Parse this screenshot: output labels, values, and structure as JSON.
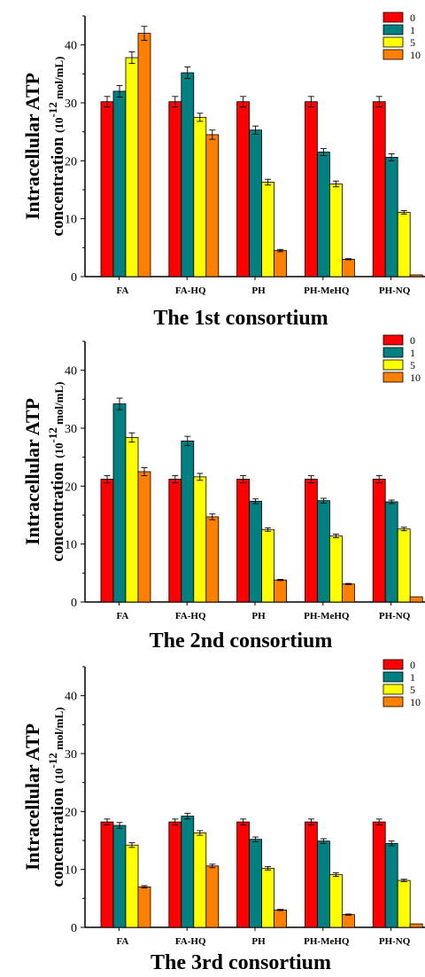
{
  "chart_data": [
    {
      "type": "bar",
      "title": "The 1st consortium",
      "ylabel_line1": "Intracellular ATP",
      "ylabel_line2_prefix": "concentration ",
      "ylabel_unit": "(10",
      "ylabel_exp": "-12",
      "ylabel_unit_rest": " mol/mL)",
      "xlabel": "",
      "ylim": [
        0,
        45
      ],
      "yticks": [
        "0",
        "10",
        "20",
        "30",
        "40"
      ],
      "categories": [
        "FA",
        "FA-HQ",
        "PH",
        "PH-MeHQ",
        "PH-NQ"
      ],
      "legend_position": "top-right",
      "series": [
        {
          "name": "0",
          "color": "#ff0000",
          "values": [
            30.2,
            30.2,
            30.2,
            30.2,
            30.2
          ],
          "errors": [
            0.9,
            0.9,
            0.9,
            0.9,
            0.9
          ]
        },
        {
          "name": "1",
          "color": "#008080",
          "values": [
            32.0,
            35.2,
            25.3,
            21.5,
            20.6
          ],
          "errors": [
            1.0,
            1.0,
            0.7,
            0.6,
            0.6
          ]
        },
        {
          "name": "5",
          "color": "#ffff00",
          "values": [
            37.8,
            27.5,
            16.3,
            16.0,
            11.1
          ],
          "errors": [
            1.0,
            0.7,
            0.5,
            0.5,
            0.3
          ]
        },
        {
          "name": "10",
          "color": "#ff8000",
          "values": [
            42.0,
            24.5,
            4.5,
            3.0,
            0.3
          ],
          "errors": [
            1.2,
            0.8,
            0.2,
            0.1,
            0.05
          ]
        }
      ]
    },
    {
      "type": "bar",
      "title": "The 2nd consortium",
      "ylabel_line1": "Intracellular ATP",
      "ylabel_line2_prefix": "concentration ",
      "ylabel_unit": "(10",
      "ylabel_exp": "-12",
      "ylabel_unit_rest": " mol/mL)",
      "xlabel": "",
      "ylim": [
        0,
        45
      ],
      "yticks": [
        "0",
        "10",
        "20",
        "30",
        "40"
      ],
      "categories": [
        "FA",
        "FA-HQ",
        "PH",
        "PH-MeHQ",
        "PH-NQ"
      ],
      "legend_position": "top-right",
      "series": [
        {
          "name": "0",
          "color": "#ff0000",
          "values": [
            21.2,
            21.2,
            21.2,
            21.2,
            21.2
          ],
          "errors": [
            0.6,
            0.6,
            0.6,
            0.6,
            0.6
          ]
        },
        {
          "name": "1",
          "color": "#008080",
          "values": [
            34.2,
            27.8,
            17.4,
            17.5,
            17.3
          ],
          "errors": [
            1.0,
            0.8,
            0.4,
            0.4,
            0.3
          ]
        },
        {
          "name": "5",
          "color": "#ffff00",
          "values": [
            28.4,
            21.6,
            12.5,
            11.4,
            12.6
          ],
          "errors": [
            0.8,
            0.6,
            0.3,
            0.3,
            0.3
          ]
        },
        {
          "name": "10",
          "color": "#ff8000",
          "values": [
            22.5,
            14.7,
            3.8,
            3.1,
            0.9
          ],
          "errors": [
            0.7,
            0.5,
            0.1,
            0.1,
            0.05
          ]
        }
      ]
    },
    {
      "type": "bar",
      "title": "The 3rd consortium",
      "ylabel_line1": "Intracellular ATP",
      "ylabel_line2_prefix": "concentration ",
      "ylabel_unit": "(10",
      "ylabel_exp": "-12",
      "ylabel_unit_rest": " mol/mL)",
      "xlabel": "",
      "ylim": [
        0,
        45
      ],
      "yticks": [
        "0",
        "10",
        "20",
        "30",
        "40"
      ],
      "categories": [
        "FA",
        "FA-HQ",
        "PH",
        "PH-MeHQ",
        "PH-NQ"
      ],
      "legend_position": "top-right",
      "series": [
        {
          "name": "0",
          "color": "#ff0000",
          "values": [
            18.2,
            18.2,
            18.2,
            18.2,
            18.2
          ],
          "errors": [
            0.5,
            0.5,
            0.5,
            0.5,
            0.5
          ]
        },
        {
          "name": "1",
          "color": "#008080",
          "values": [
            17.6,
            19.2,
            15.2,
            14.9,
            14.5
          ],
          "errors": [
            0.5,
            0.5,
            0.4,
            0.4,
            0.4
          ]
        },
        {
          "name": "5",
          "color": "#ffff00",
          "values": [
            14.2,
            16.3,
            10.2,
            9.1,
            8.1
          ],
          "errors": [
            0.4,
            0.4,
            0.3,
            0.3,
            0.2
          ]
        },
        {
          "name": "10",
          "color": "#ff8000",
          "values": [
            7.0,
            10.6,
            3.0,
            2.2,
            0.6
          ],
          "errors": [
            0.2,
            0.3,
            0.1,
            0.1,
            0.05
          ]
        }
      ]
    }
  ]
}
